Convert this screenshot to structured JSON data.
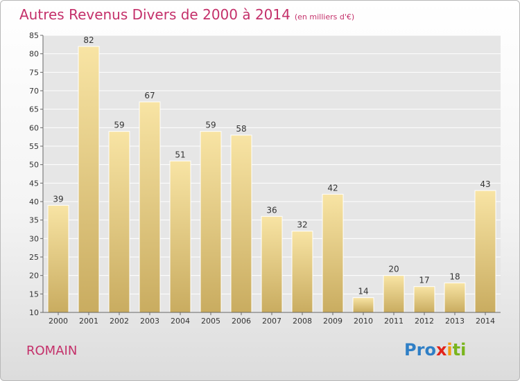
{
  "title": {
    "main": "Autres Revenus Divers de 2000 à 2014",
    "unit": "(en milliers d'€)"
  },
  "place_name": "ROMAIN",
  "logo": {
    "text": "Proxiti",
    "letters": [
      {
        "ch": "P",
        "color": "#2f7fc6"
      },
      {
        "ch": "r",
        "color": "#2f7fc6"
      },
      {
        "ch": "o",
        "color": "#2f7fc6"
      },
      {
        "ch": "x",
        "color": "#e2231a"
      },
      {
        "ch": "i",
        "color": "#f39c12"
      },
      {
        "ch": "t",
        "color": "#7ab51d"
      },
      {
        "ch": "i",
        "color": "#7ab51d"
      }
    ]
  },
  "colors": {
    "title": "#c4306a",
    "bar_light": "#f8e4a4",
    "bar_dark": "#c9ac60",
    "plot_bg": "#e6e6e6",
    "grid": "#ffffff"
  },
  "chart_data": {
    "type": "bar",
    "categories": [
      "2000",
      "2001",
      "2002",
      "2003",
      "2004",
      "2005",
      "2006",
      "2007",
      "2008",
      "2009",
      "2010",
      "2011",
      "2012",
      "2013",
      "2014"
    ],
    "values": [
      39,
      82,
      59,
      67,
      51,
      59,
      58,
      36,
      32,
      42,
      14,
      20,
      17,
      18,
      43
    ],
    "ylim": [
      10,
      85
    ],
    "yticks": [
      10,
      15,
      20,
      25,
      30,
      35,
      40,
      45,
      50,
      55,
      60,
      65,
      70,
      75,
      80,
      85
    ],
    "grid": true,
    "data_labels": true
  }
}
